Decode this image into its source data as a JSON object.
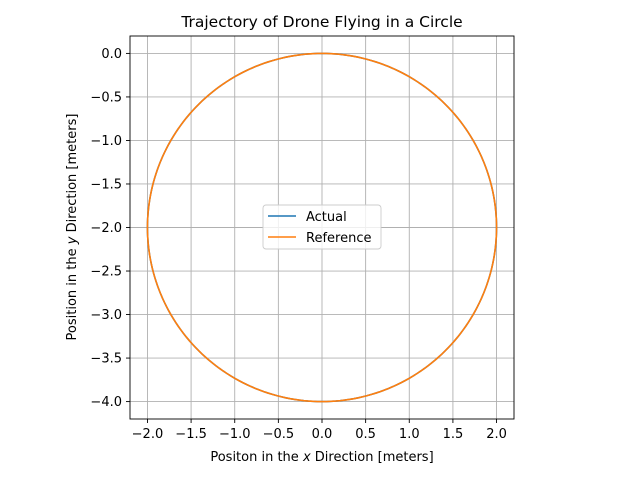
{
  "chart_data": {
    "type": "line",
    "title": "Trajectory of Drone Flying in a Circle",
    "xlabel_pre": "Positon in the ",
    "xlabel_var": "x",
    "xlabel_post": " Direction [meters]",
    "ylabel_pre": "Position in the ",
    "ylabel_var": "y",
    "ylabel_post": " Direction [meters]",
    "xlim": [
      -2.2,
      2.2
    ],
    "ylim": [
      -4.2,
      0.2
    ],
    "xticks": [
      -2.0,
      -1.5,
      -1.0,
      -0.5,
      0.0,
      0.5,
      1.0,
      1.5,
      2.0
    ],
    "xtick_labels": [
      "−2.0",
      "−1.5",
      "−1.0",
      "−0.5",
      "0.0",
      "0.5",
      "1.0",
      "1.5",
      "2.0"
    ],
    "yticks": [
      0.0,
      -0.5,
      -1.0,
      -1.5,
      -2.0,
      -2.5,
      -3.0,
      -3.5,
      -4.0
    ],
    "ytick_labels": [
      "0.0",
      "−0.5",
      "−1.0",
      "−1.5",
      "−2.0",
      "−2.5",
      "−3.0",
      "−3.5",
      "−4.0"
    ],
    "grid": true,
    "legend_position": "center",
    "series": [
      {
        "name": "Actual",
        "color": "#1f77b4",
        "shape": "circle",
        "center": [
          0.0,
          -2.0
        ],
        "radius": 2.0
      },
      {
        "name": "Reference",
        "color": "#ff7f0e",
        "shape": "circle",
        "center": [
          0.0,
          -2.0
        ],
        "radius": 2.0
      }
    ]
  }
}
